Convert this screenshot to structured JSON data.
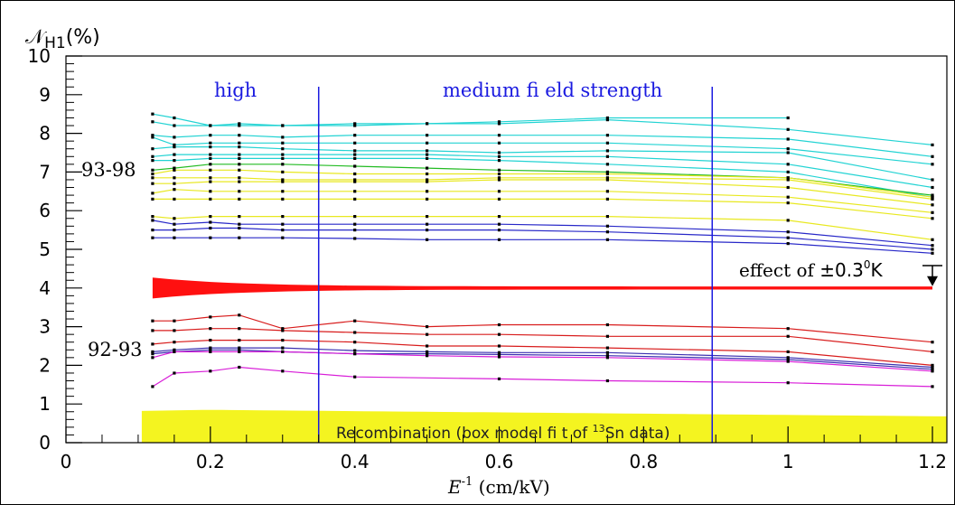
{
  "chart_data": {
    "type": "line",
    "ylabel_prefix": "𝒩",
    "ylabel_sub": "H1",
    "ylabel_suffix": "(%)",
    "xlabel_main": "E",
    "xlabel_sup": "-1",
    "xlabel_unit": " (cm/kV)",
    "xlim": [
      0,
      1.22
    ],
    "ylim": [
      0,
      10
    ],
    "x_ticks": [
      0,
      0.2,
      0.4,
      0.6,
      0.8,
      1,
      1.2
    ],
    "x_tick_labels": [
      "0",
      "0.2",
      "0.4",
      "0.6",
      "0.8",
      "1",
      "1.2"
    ],
    "y_ticks": [
      0,
      1,
      2,
      3,
      4,
      5,
      6,
      7,
      8,
      9,
      10
    ],
    "y_tick_labels": [
      "0",
      "1",
      "2",
      "3",
      "4",
      "5",
      "6",
      "7",
      "8",
      "9",
      "10"
    ],
    "grid": false,
    "x_points": [
      0.12,
      0.15,
      0.2,
      0.24,
      0.3,
      0.4,
      0.5,
      0.6,
      0.75,
      1.0,
      1.2
    ],
    "vertical_lines": [
      0.35,
      0.895
    ],
    "region_labels": {
      "high": "high",
      "medium": "medium fi eld strength"
    },
    "group_labels": {
      "upper": "93-98",
      "lower": "92-93"
    },
    "series_groups": [
      {
        "color": "#22d3d3",
        "series": [
          [
            8.5,
            8.4,
            8.2,
            8.25,
            8.2,
            8.25,
            8.25,
            8.3,
            8.4,
            8.4,
            null
          ],
          [
            8.3,
            8.2,
            8.2,
            8.2,
            8.2,
            8.2,
            8.25,
            8.25,
            8.35,
            8.1,
            7.7
          ],
          [
            7.95,
            7.9,
            7.95,
            7.95,
            7.9,
            7.95,
            7.95,
            7.95,
            7.95,
            7.85,
            7.4
          ],
          [
            7.9,
            7.7,
            7.75,
            7.75,
            7.75,
            7.75,
            7.75,
            7.75,
            7.75,
            7.6,
            7.2
          ],
          [
            7.6,
            7.65,
            7.65,
            7.65,
            7.6,
            7.55,
            7.55,
            7.5,
            7.55,
            7.5,
            6.8
          ],
          [
            7.4,
            7.45,
            7.45,
            7.45,
            7.45,
            7.45,
            7.45,
            7.4,
            7.4,
            7.2,
            6.6
          ],
          [
            7.3,
            7.3,
            7.35,
            7.35,
            7.35,
            7.35,
            7.35,
            7.3,
            7.2,
            7.0,
            6.35
          ]
        ]
      },
      {
        "color": "#22bb22",
        "series": [
          [
            7.05,
            7.1,
            7.2,
            7.2,
            7.2,
            7.15,
            7.1,
            7.05,
            7.0,
            6.85,
            6.4
          ]
        ]
      },
      {
        "color": "#e8e820",
        "series": [
          [
            6.95,
            7.05,
            7.05,
            7.05,
            7.0,
            6.95,
            6.95,
            6.95,
            6.95,
            6.85,
            6.35
          ],
          [
            6.85,
            6.85,
            6.85,
            6.85,
            6.8,
            6.8,
            6.8,
            6.85,
            6.85,
            6.8,
            6.3
          ],
          [
            6.7,
            6.7,
            6.75,
            6.75,
            6.75,
            6.75,
            6.75,
            6.8,
            6.8,
            6.6,
            6.15
          ],
          [
            6.45,
            6.55,
            6.5,
            6.5,
            6.5,
            6.5,
            6.5,
            6.5,
            6.5,
            6.35,
            5.95
          ],
          [
            6.3,
            6.3,
            6.3,
            6.3,
            6.3,
            6.3,
            6.3,
            6.3,
            6.3,
            6.2,
            5.8
          ],
          [
            5.85,
            5.8,
            5.85,
            5.85,
            5.85,
            5.85,
            5.85,
            5.85,
            5.85,
            5.75,
            5.25
          ]
        ]
      },
      {
        "color": "#2828c8",
        "series": [
          [
            5.75,
            5.65,
            5.7,
            5.65,
            5.65,
            5.65,
            5.65,
            5.65,
            5.6,
            5.45,
            5.1
          ],
          [
            5.5,
            5.5,
            5.55,
            5.55,
            5.5,
            5.5,
            5.5,
            5.5,
            5.45,
            5.3,
            5.0
          ],
          [
            5.3,
            5.3,
            5.3,
            5.3,
            5.3,
            5.28,
            5.25,
            5.25,
            5.25,
            5.15,
            4.9
          ]
        ]
      },
      {
        "color": "#d81c1c",
        "series": [
          [
            3.15,
            3.15,
            3.25,
            3.3,
            2.95,
            3.15,
            3.0,
            3.05,
            3.05,
            2.95,
            2.6
          ],
          [
            2.9,
            2.9,
            2.95,
            2.95,
            2.9,
            2.85,
            2.8,
            2.8,
            2.75,
            2.75,
            2.35
          ],
          [
            2.55,
            2.6,
            2.65,
            2.65,
            2.65,
            2.6,
            2.5,
            2.5,
            2.45,
            2.35,
            2.0
          ]
        ]
      },
      {
        "color": "#3b2fb0",
        "series": [
          [
            2.35,
            2.4,
            2.45,
            2.45,
            2.45,
            2.38,
            2.35,
            2.33,
            2.33,
            2.2,
            1.95
          ],
          [
            2.3,
            2.35,
            2.4,
            2.4,
            2.35,
            2.3,
            2.3,
            2.28,
            2.25,
            2.15,
            1.9
          ]
        ]
      },
      {
        "color": "#d81ed8",
        "series": [
          [
            2.2,
            2.35,
            2.35,
            2.35,
            2.35,
            2.3,
            2.25,
            2.22,
            2.2,
            2.1,
            1.85
          ],
          [
            1.45,
            1.8,
            1.85,
            1.95,
            1.85,
            1.7,
            null,
            1.65,
            1.6,
            1.55,
            1.45
          ]
        ]
      }
    ],
    "systematic_band": {
      "color": "#ff1010",
      "center": 4.0,
      "x_start": 0.12,
      "x_end": 1.2,
      "half_width_start": 0.23,
      "label_prefix": "effect of ",
      "label_value": "±0.3",
      "label_sup": "0",
      "label_suffix": "K"
    },
    "recombination_band": {
      "color": "#f4f420",
      "x_start": 0.105,
      "x_end": 1.22,
      "upper_start": 0.82,
      "upper_peak": 0.85,
      "upper_end": 0.68,
      "label_prefix": "Recombination (box model fi  t of ",
      "label_sup": "13",
      "label_suffix": "Sn data)"
    }
  }
}
